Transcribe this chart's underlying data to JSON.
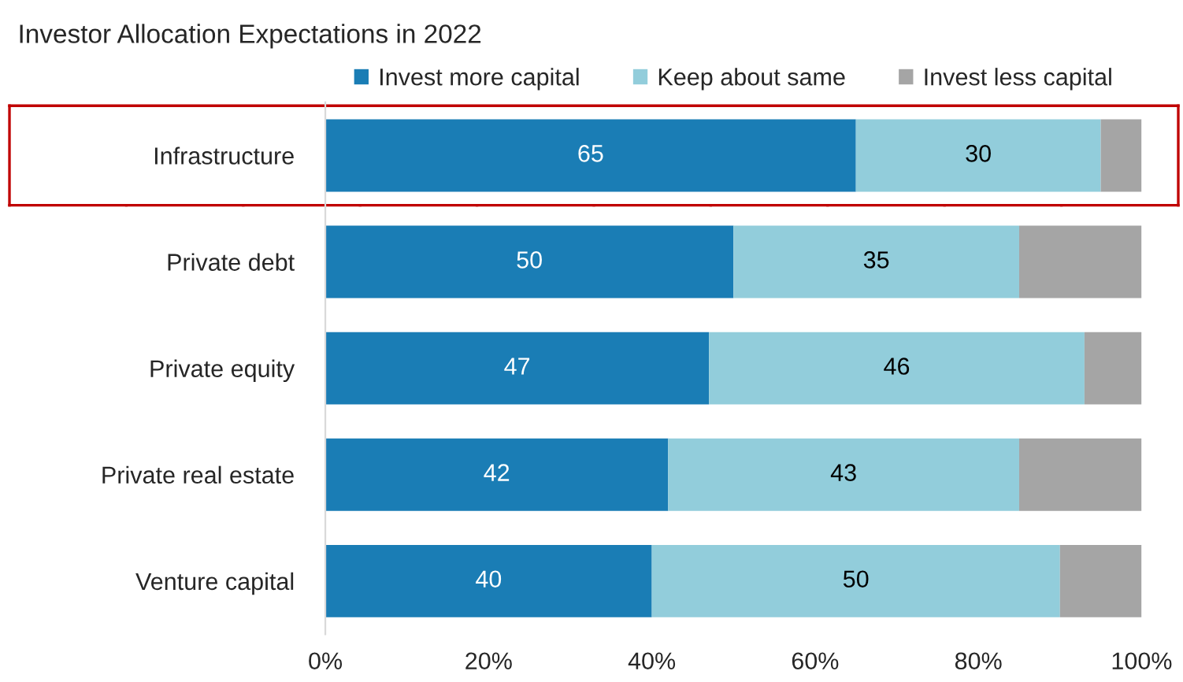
{
  "chart_data": {
    "type": "bar",
    "orientation": "horizontal",
    "stacked": true,
    "title": "Investor Allocation Expectations in 2022",
    "categories": [
      "Infrastructure",
      "Private debt",
      "Private equity",
      "Private real estate",
      "Venture capital"
    ],
    "series": [
      {
        "name": "Invest more capital",
        "color": "#1a7db5",
        "values": [
          65,
          50,
          47,
          42,
          40
        ],
        "value_labels": [
          "65",
          "50",
          "47",
          "42",
          "40"
        ]
      },
      {
        "name": "Keep about same",
        "color": "#92cddb",
        "values": [
          30,
          35,
          46,
          43,
          50
        ],
        "value_labels": [
          "30",
          "35",
          "46",
          "43",
          "50"
        ]
      },
      {
        "name": "Invest less capital",
        "color": "#a5a5a5",
        "values": [
          5,
          15,
          7,
          15,
          10
        ]
      }
    ],
    "xlim": [
      0,
      100
    ],
    "xticks": [
      {
        "value": 0,
        "label": "0%"
      },
      {
        "value": 20,
        "label": "20%"
      },
      {
        "value": 40,
        "label": "40%"
      },
      {
        "value": 60,
        "label": "60%"
      },
      {
        "value": 80,
        "label": "80%"
      },
      {
        "value": 100,
        "label": "100%"
      }
    ],
    "legend": "top",
    "grid": false
  }
}
